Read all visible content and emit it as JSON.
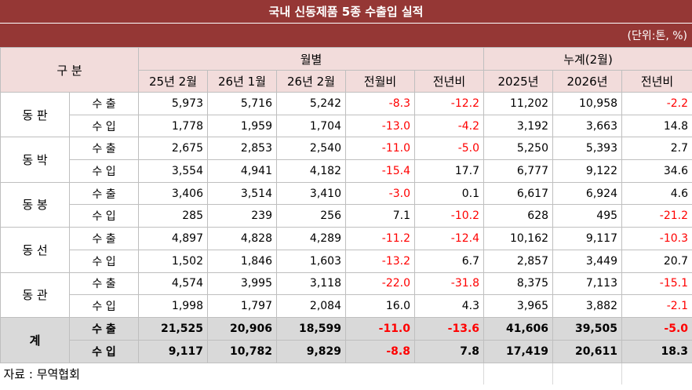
{
  "title": "국내 신동제품 5종 수출입 실적",
  "unit": "(단위:톤, %)",
  "headers": {
    "category": "구 분",
    "monthly": "월별",
    "cumulative": "누계(2월)",
    "monthly_cols": [
      "25년 2월",
      "26년 1월",
      "26년 2월",
      "전월비",
      "전년비"
    ],
    "cumulative_cols": [
      "2025년",
      "2026년",
      "전년비"
    ]
  },
  "rows": [
    {
      "group": "동 판",
      "type": "수 출",
      "values": [
        "5,973",
        "5,716",
        "5,242",
        "-8.3",
        "-12.2",
        "11,202",
        "10,958",
        "-2.2"
      ]
    },
    {
      "group": "동 판",
      "type": "수 입",
      "values": [
        "1,778",
        "1,959",
        "1,704",
        "-13.0",
        "-4.2",
        "3,192",
        "3,663",
        "14.8"
      ]
    },
    {
      "group": "동 박",
      "type": "수 출",
      "values": [
        "2,675",
        "2,853",
        "2,540",
        "-11.0",
        "-5.0",
        "5,250",
        "5,393",
        "2.7"
      ]
    },
    {
      "group": "동 박",
      "type": "수 입",
      "values": [
        "3,554",
        "4,941",
        "4,182",
        "-15.4",
        "17.7",
        "6,777",
        "9,122",
        "34.6"
      ]
    },
    {
      "group": "동 봉",
      "type": "수 출",
      "values": [
        "3,406",
        "3,514",
        "3,410",
        "-3.0",
        "0.1",
        "6,617",
        "6,924",
        "4.6"
      ]
    },
    {
      "group": "동 봉",
      "type": "수 입",
      "values": [
        "285",
        "239",
        "256",
        "7.1",
        "-10.2",
        "628",
        "495",
        "-21.2"
      ]
    },
    {
      "group": "동 선",
      "type": "수 출",
      "values": [
        "4,897",
        "4,828",
        "4,289",
        "-11.2",
        "-12.4",
        "10,162",
        "9,117",
        "-10.3"
      ]
    },
    {
      "group": "동 선",
      "type": "수 입",
      "values": [
        "1,502",
        "1,846",
        "1,603",
        "-13.2",
        "6.7",
        "2,857",
        "3,449",
        "20.7"
      ]
    },
    {
      "group": "동 관",
      "type": "수 출",
      "values": [
        "4,574",
        "3,995",
        "3,118",
        "-22.0",
        "-31.8",
        "8,375",
        "7,113",
        "-15.1"
      ]
    },
    {
      "group": "동 관",
      "type": "수 입",
      "values": [
        "1,998",
        "1,797",
        "2,084",
        "16.0",
        "4.3",
        "3,965",
        "3,882",
        "-2.1"
      ]
    }
  ],
  "total": {
    "label": "계",
    "rows": [
      {
        "type": "수 출",
        "values": [
          "21,525",
          "20,906",
          "18,599",
          "-11.0",
          "-13.6",
          "41,606",
          "39,505",
          "-5.0"
        ]
      },
      {
        "type": "수 입",
        "values": [
          "9,117",
          "10,782",
          "9,829",
          "-8.8",
          "7.8",
          "17,419",
          "20,611",
          "18.3"
        ]
      }
    ]
  },
  "source": "자료 : 무역협회",
  "colors": {
    "header_bar": "#953735",
    "header_cell": "#f2dcdb",
    "total_row": "#d9d9d9",
    "negative": "#ff0000"
  }
}
